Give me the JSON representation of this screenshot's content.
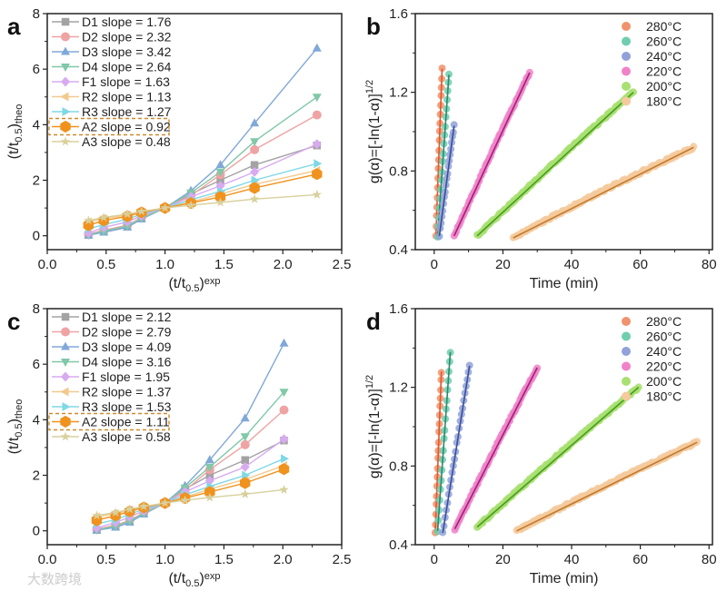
{
  "watermark": "大数跨境",
  "chart_data": [
    {
      "panel": "a",
      "type": "line",
      "xlabel_parts": [
        "(t/t",
        "0.5",
        ")",
        "exp"
      ],
      "ylabel_parts": [
        "(t/t",
        "0.5",
        ")",
        "theo"
      ],
      "xlim": [
        0,
        2.5
      ],
      "ylim": [
        -0.5,
        8
      ],
      "xticks": [
        0.0,
        0.5,
        1.0,
        1.5,
        2.0,
        2.5
      ],
      "yticks": [
        0,
        2,
        4,
        6,
        8
      ],
      "legend_position": "top-left",
      "highlighted_series": "A2",
      "x": [
        0.35,
        0.48,
        0.68,
        0.8,
        1.0,
        1.22,
        1.47,
        1.76,
        2.29
      ],
      "series": [
        {
          "name": "D1 slope = 1.76",
          "marker": "square",
          "color": "#a3a3a3",
          "values": [
            0.03,
            0.15,
            0.33,
            0.62,
            1.0,
            1.5,
            2.0,
            2.55,
            3.25
          ]
        },
        {
          "name": "D2 slope = 2.32",
          "marker": "circle",
          "color": "#f0a3a3",
          "values": [
            0.06,
            0.2,
            0.38,
            0.65,
            1.0,
            1.45,
            2.2,
            3.1,
            4.35
          ]
        },
        {
          "name": "D3 slope = 3.42",
          "marker": "triangle-up",
          "color": "#80a8d8",
          "values": [
            0.02,
            0.12,
            0.3,
            0.6,
            1.0,
            1.62,
            2.55,
            4.05,
            6.75
          ]
        },
        {
          "name": "D4 slope = 2.64",
          "marker": "triangle-down",
          "color": "#80c8a8",
          "values": [
            0.04,
            0.17,
            0.35,
            0.63,
            1.0,
            1.55,
            2.3,
            3.4,
            5.0
          ]
        },
        {
          "name": "F1 slope = 1.63",
          "marker": "diamond",
          "color": "#d8aaf0",
          "values": [
            0.1,
            0.3,
            0.5,
            0.72,
            1.0,
            1.4,
            1.8,
            2.3,
            3.3
          ]
        },
        {
          "name": "R2 slope = 1.13",
          "marker": "triangle-left",
          "color": "#f3c98c",
          "values": [
            0.5,
            0.62,
            0.75,
            0.86,
            1.0,
            1.22,
            1.5,
            1.85,
            2.35
          ]
        },
        {
          "name": "R3 slope = 1.27",
          "marker": "triangle-right",
          "color": "#80d8e6",
          "values": [
            0.25,
            0.4,
            0.6,
            0.78,
            1.0,
            1.3,
            1.6,
            2.0,
            2.6
          ]
        },
        {
          "name": "A2 slope = 0.92",
          "marker": "hexagon",
          "color": "#f0921e",
          "values": [
            0.38,
            0.55,
            0.7,
            0.84,
            1.0,
            1.18,
            1.4,
            1.72,
            2.22
          ]
        },
        {
          "name": "A3 slope = 0.48",
          "marker": "star",
          "color": "#d8d09c",
          "values": [
            0.55,
            0.66,
            0.78,
            0.88,
            1.0,
            1.1,
            1.2,
            1.32,
            1.48
          ]
        }
      ]
    },
    {
      "panel": "b",
      "type": "scatter",
      "xlabel": "Time (min)",
      "ylabel_main": "g(α)=[-ln(1-α)]",
      "ylabel_sup": "1/2",
      "xlim": [
        -5.5,
        81
      ],
      "ylim": [
        0.4,
        1.6
      ],
      "xticks": [
        0,
        20,
        40,
        60,
        80
      ],
      "yticks": [
        0.4,
        0.8,
        1.2,
        1.6
      ],
      "legend_position": "top-right",
      "series": [
        {
          "name": "280°C",
          "color": "#f0926c",
          "line_color": "#e0582a",
          "fit": [
            [
              0.5,
              0.47
            ],
            [
              2.3,
              1.32
            ]
          ]
        },
        {
          "name": "260°C",
          "color": "#70cdb0",
          "line_color": "#2a8a6a",
          "fit": [
            [
              1.0,
              0.47
            ],
            [
              4.3,
              1.29
            ]
          ]
        },
        {
          "name": "240°C",
          "color": "#92a2d8",
          "line_color": "#3a4f99",
          "fit": [
            [
              1.5,
              0.47
            ],
            [
              5.8,
              1.03
            ]
          ]
        },
        {
          "name": "220°C",
          "color": "#f082c8",
          "line_color": "#a0207a",
          "fit": [
            [
              5.8,
              0.47
            ],
            [
              27.8,
              1.3
            ]
          ]
        },
        {
          "name": "200°C",
          "color": "#a8e072",
          "line_color": "#4a9a20",
          "fit": [
            [
              12.5,
              0.47
            ],
            [
              58,
              1.2
            ]
          ]
        },
        {
          "name": "180°C",
          "color": "#f5ca9c",
          "line_color": "#c07a30",
          "fit": [
            [
              23,
              0.46
            ],
            [
              75.5,
              0.92
            ]
          ]
        }
      ]
    },
    {
      "panel": "c",
      "type": "line",
      "xlabel_parts": [
        "(t/t",
        "0.5",
        ")",
        "exp"
      ],
      "ylabel_parts": [
        "(t/t",
        "0.5",
        ")",
        "theo"
      ],
      "xlim": [
        0,
        2.5
      ],
      "ylim": [
        -0.5,
        8
      ],
      "xticks": [
        0.0,
        0.5,
        1.0,
        1.5,
        2.0,
        2.5
      ],
      "yticks": [
        0,
        2,
        4,
        6,
        8
      ],
      "legend_position": "top-left",
      "highlighted_series": "A2",
      "x": [
        0.42,
        0.58,
        0.7,
        0.82,
        1.0,
        1.17,
        1.38,
        1.68,
        2.01
      ],
      "series": [
        {
          "name": "D1 slope = 2.12",
          "marker": "square",
          "color": "#a3a3a3",
          "values": [
            0.03,
            0.15,
            0.33,
            0.62,
            1.0,
            1.5,
            2.0,
            2.55,
            3.25
          ]
        },
        {
          "name": "D2 slope = 2.79",
          "marker": "circle",
          "color": "#f0a3a3",
          "values": [
            0.06,
            0.2,
            0.38,
            0.65,
            1.0,
            1.45,
            2.2,
            3.1,
            4.35
          ]
        },
        {
          "name": "D3 slope = 4.09",
          "marker": "triangle-up",
          "color": "#80a8d8",
          "values": [
            0.02,
            0.12,
            0.3,
            0.6,
            1.0,
            1.62,
            2.55,
            4.05,
            6.75
          ]
        },
        {
          "name": "D4 slope = 3.16",
          "marker": "triangle-down",
          "color": "#80c8a8",
          "values": [
            0.04,
            0.17,
            0.35,
            0.63,
            1.0,
            1.55,
            2.3,
            3.4,
            5.0
          ]
        },
        {
          "name": "F1 slope = 1.95",
          "marker": "diamond",
          "color": "#d8aaf0",
          "values": [
            0.1,
            0.3,
            0.5,
            0.72,
            1.0,
            1.4,
            1.8,
            2.3,
            3.3
          ]
        },
        {
          "name": "R2 slope = 1.37",
          "marker": "triangle-left",
          "color": "#f3c98c",
          "values": [
            0.5,
            0.62,
            0.75,
            0.86,
            1.0,
            1.22,
            1.5,
            1.85,
            2.35
          ]
        },
        {
          "name": "R3 slope = 1.53",
          "marker": "triangle-right",
          "color": "#80d8e6",
          "values": [
            0.25,
            0.4,
            0.6,
            0.78,
            1.0,
            1.3,
            1.6,
            2.0,
            2.6
          ]
        },
        {
          "name": "A2 slope = 1.11",
          "marker": "hexagon",
          "color": "#f0921e",
          "values": [
            0.38,
            0.55,
            0.7,
            0.84,
            1.0,
            1.18,
            1.4,
            1.72,
            2.22
          ]
        },
        {
          "name": "A3 slope = 0.58",
          "marker": "star",
          "color": "#d8d09c",
          "values": [
            0.55,
            0.66,
            0.78,
            0.88,
            1.0,
            1.1,
            1.2,
            1.32,
            1.48
          ]
        }
      ]
    },
    {
      "panel": "d",
      "type": "scatter",
      "xlabel": "Time (min)",
      "ylabel_main": "g(α)=[-ln(1-α)]",
      "ylabel_sup": "1/2",
      "xlim": [
        -5.5,
        81
      ],
      "ylim": [
        0.4,
        1.6
      ],
      "xticks": [
        0,
        20,
        40,
        60,
        80
      ],
      "yticks": [
        0.4,
        0.8,
        1.2,
        1.6
      ],
      "legend_position": "top-right",
      "series": [
        {
          "name": "280°C",
          "color": "#f0926c",
          "line_color": "#e0582a",
          "fit": [
            [
              0.3,
              0.46
            ],
            [
              2.1,
              1.28
            ]
          ]
        },
        {
          "name": "260°C",
          "color": "#70cdb0",
          "line_color": "#2a8a6a",
          "fit": [
            [
              1.0,
              0.47
            ],
            [
              4.7,
              1.38
            ]
          ]
        },
        {
          "name": "240°C",
          "color": "#92a2d8",
          "line_color": "#3a4f99",
          "fit": [
            [
              2.5,
              0.46
            ],
            [
              10.3,
              1.31
            ]
          ]
        },
        {
          "name": "220°C",
          "color": "#f082c8",
          "line_color": "#a0207a",
          "fit": [
            [
              6.0,
              0.48
            ],
            [
              30,
              1.3
            ]
          ]
        },
        {
          "name": "200°C",
          "color": "#a8e072",
          "line_color": "#4a9a20",
          "fit": [
            [
              12.5,
              0.49
            ],
            [
              59.5,
              1.2
            ]
          ]
        },
        {
          "name": "180°C",
          "color": "#f5ca9c",
          "line_color": "#c07a30",
          "fit": [
            [
              24,
              0.47
            ],
            [
              76.5,
              0.92
            ]
          ]
        }
      ]
    }
  ]
}
